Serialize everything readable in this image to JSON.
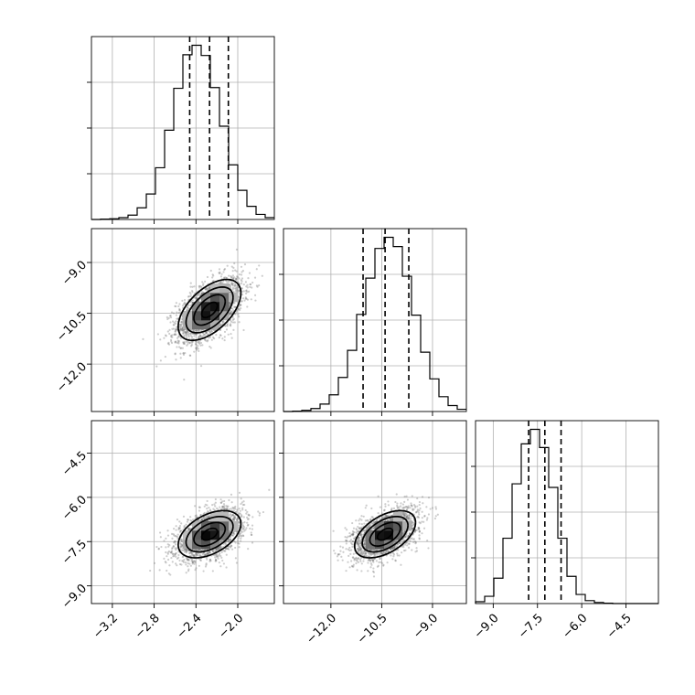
{
  "chart_data": {
    "type": "corner",
    "parameters": [
      {
        "ticks": [
          -3.2,
          -2.8,
          -2.4,
          -2.0
        ],
        "tick_labels": [
          "−3.2",
          "−2.8",
          "−2.4",
          "−2.0"
        ],
        "range": [
          -3.4,
          -1.65
        ],
        "mean": -2.27,
        "sd": 0.15,
        "quantiles": [
          -2.46,
          -2.27,
          -2.09
        ]
      },
      {
        "ticks": [
          -12.0,
          -10.5,
          -9.0
        ],
        "tick_labels": [
          "−12.0",
          "−10.5",
          "−9.0"
        ],
        "range": [
          -13.4,
          -8.0
        ],
        "mean": -10.4,
        "sd": 0.45,
        "quantiles": [
          -11.05,
          -10.4,
          -9.7
        ]
      },
      {
        "ticks": [
          -9.0,
          -7.5,
          -6.0,
          -4.5
        ],
        "tick_labels": [
          "−9.0",
          "−7.5",
          "−6.0",
          "−4.5"
        ],
        "range": [
          -9.6,
          -3.4
        ],
        "mean": -7.25,
        "sd": 0.4,
        "quantiles": [
          -7.8,
          -7.25,
          -6.7
        ]
      }
    ],
    "histograms": [
      {
        "bins": [
          -3.4,
          -3.3125,
          -3.225,
          -3.1375,
          -3.05,
          -2.9625,
          -2.875,
          -2.7875,
          -2.7,
          -2.6125,
          -2.525,
          -2.4375,
          -2.35,
          -2.2625,
          -2.175,
          -2.0875,
          -2.0,
          -1.9125,
          -1.825,
          -1.7375,
          -1.65
        ],
        "counts": [
          0,
          1,
          2,
          5,
          12,
          32,
          70,
          142,
          245,
          360,
          452,
          478,
          450,
          362,
          256,
          150,
          80,
          36,
          14,
          5
        ]
      },
      {
        "bins": [
          -13.4,
          -13.13,
          -12.86,
          -12.59,
          -12.32,
          -12.05,
          -11.78,
          -11.51,
          -11.24,
          -10.97,
          -10.7,
          -10.43,
          -10.16,
          -9.89,
          -9.62,
          -9.35,
          -9.08,
          -8.81,
          -8.54,
          -8.27,
          -8.0
        ],
        "counts": [
          0,
          1,
          3,
          8,
          20,
          45,
          92,
          165,
          262,
          360,
          440,
          470,
          445,
          365,
          260,
          160,
          88,
          40,
          16,
          6
        ]
      },
      {
        "bins": [
          -9.6,
          -9.29,
          -8.98,
          -8.67,
          -8.36,
          -8.05,
          -7.74,
          -7.43,
          -7.12,
          -6.81,
          -6.5,
          -6.19,
          -5.88,
          -5.57,
          -5.26,
          -4.95,
          -4.64,
          -4.33,
          -4.02,
          -3.71,
          -3.4
        ],
        "counts": [
          5,
          20,
          70,
          180,
          330,
          440,
          480,
          430,
          320,
          180,
          75,
          25,
          8,
          3,
          1,
          0,
          0,
          0,
          0,
          0
        ]
      }
    ],
    "pairs": [
      {
        "x_param": 0,
        "y_param": 1,
        "correlation": 0.55,
        "contour_sigma": [
          0.5,
          1.0,
          1.5,
          2.0
        ]
      },
      {
        "x_param": 0,
        "y_param": 2,
        "correlation": 0.45,
        "contour_sigma": [
          0.5,
          1.0,
          1.5,
          2.0
        ]
      },
      {
        "x_param": 1,
        "y_param": 2,
        "correlation": 0.5,
        "contour_sigma": [
          0.5,
          1.0,
          1.5,
          2.0
        ]
      }
    ],
    "grid": true,
    "quantile_line_style": "dashed"
  }
}
